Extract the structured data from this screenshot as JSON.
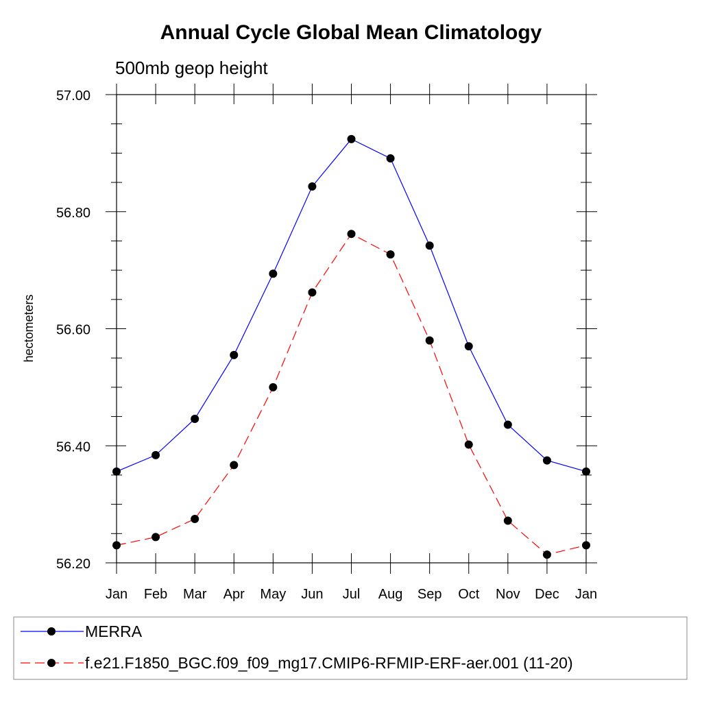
{
  "chart_data": {
    "type": "line",
    "title": "Annual Cycle Global Mean Climatology",
    "subtitle": "500mb geop height",
    "ylabel": "hectometers",
    "xlabel": "",
    "categories": [
      "Jan",
      "Feb",
      "Mar",
      "Apr",
      "May",
      "Jun",
      "Jul",
      "Aug",
      "Sep",
      "Oct",
      "Nov",
      "Dec",
      "Jan"
    ],
    "ylim": [
      56.2,
      57.0
    ],
    "yticks": [
      56.2,
      56.4,
      56.6,
      56.8,
      57.0
    ],
    "ytick_labels": [
      "56.20",
      "56.40",
      "56.60",
      "56.80",
      "57.00"
    ],
    "yminor_step": 0.05,
    "series": [
      {
        "name": "MERRA",
        "color": "#0000ff",
        "dash": "solid",
        "values": [
          56.356,
          56.384,
          56.446,
          56.555,
          56.694,
          56.843,
          56.924,
          56.891,
          56.742,
          56.57,
          56.436,
          56.375,
          56.356
        ]
      },
      {
        "name": "f.e21.F1850_BGC.f09_f09_mg17.CMIP6-RFMIP-ERF-aer.001 (11-20)",
        "color": "#ff0000",
        "dash": "dashed",
        "values": [
          56.23,
          56.244,
          56.275,
          56.367,
          56.5,
          56.662,
          56.762,
          56.727,
          56.58,
          56.402,
          56.272,
          56.214,
          56.23
        ]
      }
    ],
    "legend_position": "bottom"
  }
}
